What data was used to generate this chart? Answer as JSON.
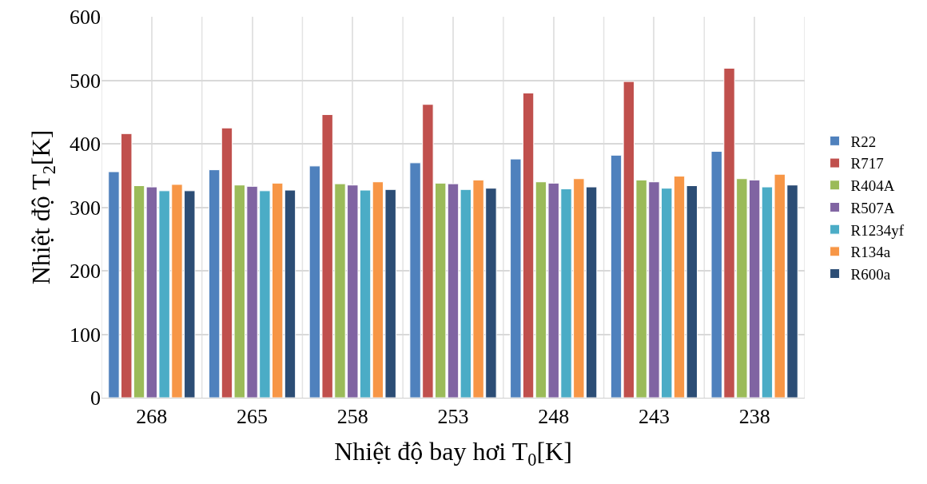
{
  "chart_data": {
    "type": "bar",
    "xlabel": "Nhiệt độ bay hơi T$_{0}$[K]",
    "ylabel": "Nhiệt độ T$_{2}$[K]",
    "categories": [
      "268",
      "265",
      "258",
      "253",
      "248",
      "243",
      "238"
    ],
    "series": [
      {
        "name": "R22",
        "color": "#4f81bd",
        "values": [
          356,
          359,
          365,
          370,
          376,
          382,
          388
        ]
      },
      {
        "name": "R717",
        "color": "#c0504d",
        "values": [
          416,
          425,
          446,
          462,
          480,
          498,
          519
        ]
      },
      {
        "name": "R404A",
        "color": "#9bbb59",
        "values": [
          334,
          335,
          337,
          338,
          340,
          343,
          345
        ]
      },
      {
        "name": "R507A",
        "color": "#8064a2",
        "values": [
          332,
          333,
          335,
          337,
          338,
          340,
          343
        ]
      },
      {
        "name": "R1234yf",
        "color": "#4bacc6",
        "values": [
          326,
          326,
          327,
          328,
          329,
          330,
          332
        ]
      },
      {
        "name": "R134a",
        "color": "#f79646",
        "values": [
          336,
          338,
          340,
          343,
          345,
          349,
          352
        ]
      },
      {
        "name": "R600a",
        "color": "#2c4d75",
        "values": [
          326,
          327,
          328,
          330,
          332,
          334,
          335
        ]
      }
    ],
    "ylim": [
      0,
      600
    ],
    "yticks": [
      0,
      100,
      200,
      300,
      400,
      500,
      600
    ],
    "grid": true,
    "legend": "right"
  }
}
